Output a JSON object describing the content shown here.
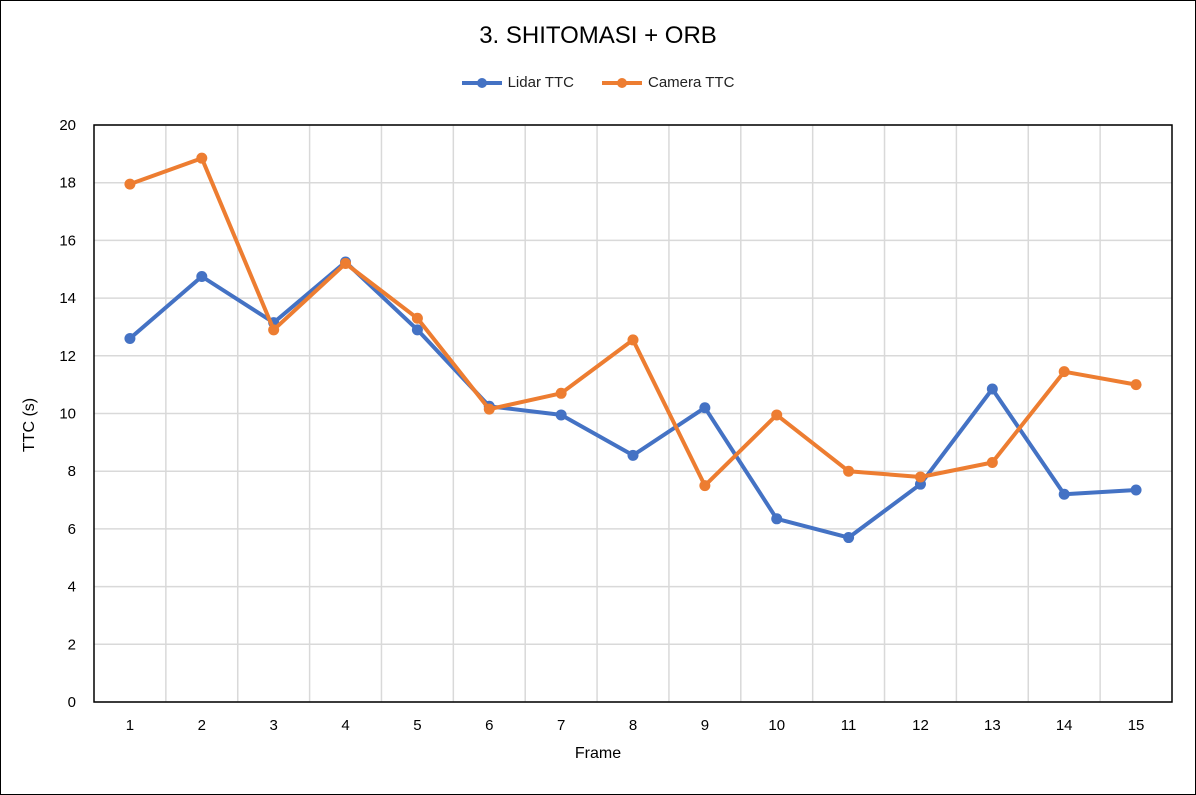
{
  "chart_data": {
    "type": "line",
    "title": "3. SHITOMASI + ORB",
    "xlabel": "Frame",
    "ylabel": "TTC (s)",
    "categories": [
      "1",
      "2",
      "3",
      "4",
      "5",
      "6",
      "7",
      "8",
      "9",
      "10",
      "11",
      "12",
      "13",
      "14",
      "15"
    ],
    "ylim": [
      0,
      20
    ],
    "yticks": [
      0,
      2,
      4,
      6,
      8,
      10,
      12,
      14,
      16,
      18,
      20
    ],
    "grid": true,
    "legend_position": "top-center",
    "series": [
      {
        "name": "Lidar TTC",
        "color": "#4472C4",
        "values": [
          12.6,
          14.75,
          13.15,
          15.25,
          12.9,
          10.25,
          9.95,
          8.55,
          10.2,
          6.35,
          5.7,
          7.55,
          10.85,
          7.2,
          7.35
        ]
      },
      {
        "name": "Camera TTC",
        "color": "#ED7D31",
        "values": [
          17.95,
          18.85,
          12.9,
          15.2,
          13.3,
          10.15,
          10.7,
          12.55,
          7.5,
          9.95,
          8.0,
          7.8,
          8.3,
          11.45,
          11.0
        ]
      }
    ]
  }
}
